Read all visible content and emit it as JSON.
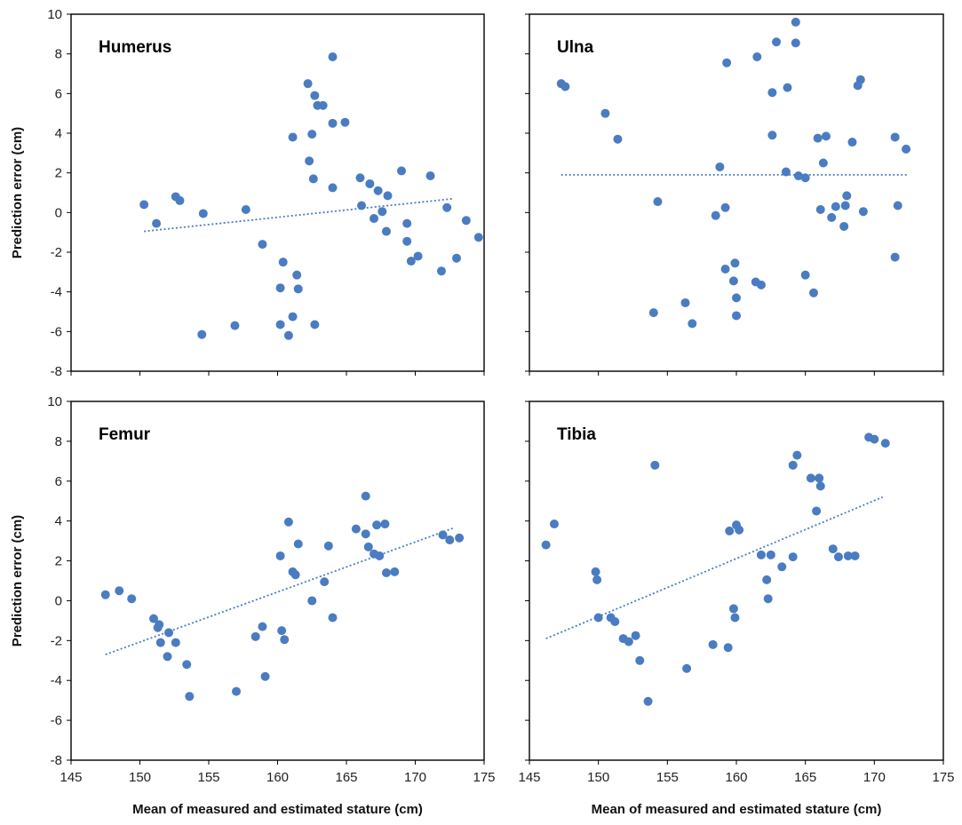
{
  "colors": {
    "point": "#4a7cc1",
    "trend": "#4a7cc1",
    "axis": "#000000"
  },
  "axes": {
    "ylabel": "Prediction error (cm)",
    "xlabel": "Mean of measured and estimated stature (cm)",
    "xlim": [
      145,
      175
    ],
    "ylim": [
      -8,
      10
    ],
    "xticks": [
      "145",
      "150",
      "155",
      "160",
      "165",
      "170",
      "175"
    ],
    "yticks": [
      "-8",
      "-6",
      "-4",
      "-2",
      "0",
      "2",
      "4",
      "6",
      "8",
      "10"
    ]
  },
  "chart_data": [
    {
      "type": "scatter",
      "title": "Humerus",
      "xlim": [
        145,
        175
      ],
      "ylim": [
        -8,
        10
      ],
      "trend": [
        [
          150.3,
          -0.95
        ],
        [
          172.8,
          0.7
        ]
      ],
      "points": [
        [
          150.3,
          0.4
        ],
        [
          151.2,
          -0.55
        ],
        [
          152.6,
          0.8
        ],
        [
          152.9,
          0.6
        ],
        [
          154.6,
          -0.05
        ],
        [
          154.5,
          -6.15
        ],
        [
          156.9,
          -5.7
        ],
        [
          157.7,
          0.15
        ],
        [
          158.9,
          -1.6
        ],
        [
          160.2,
          -3.8
        ],
        [
          160.4,
          -2.5
        ],
        [
          160.2,
          -5.65
        ],
        [
          160.8,
          -6.2
        ],
        [
          161.1,
          3.8
        ],
        [
          161.1,
          -5.25
        ],
        [
          161.4,
          -3.15
        ],
        [
          161.5,
          -3.85
        ],
        [
          162.2,
          6.5
        ],
        [
          162.3,
          2.6
        ],
        [
          162.5,
          3.95
        ],
        [
          162.7,
          5.9
        ],
        [
          162.6,
          1.7
        ],
        [
          162.9,
          5.4
        ],
        [
          163.3,
          5.4
        ],
        [
          162.7,
          -5.65
        ],
        [
          164.0,
          7.85
        ],
        [
          164.0,
          4.5
        ],
        [
          164.0,
          1.25
        ],
        [
          164.9,
          4.55
        ],
        [
          166.0,
          1.75
        ],
        [
          166.1,
          0.35
        ],
        [
          166.7,
          1.45
        ],
        [
          167.0,
          -0.3
        ],
        [
          167.3,
          1.1
        ],
        [
          167.6,
          0.05
        ],
        [
          167.9,
          -0.95
        ],
        [
          168.0,
          0.85
        ],
        [
          169.0,
          2.1
        ],
        [
          169.4,
          -0.55
        ],
        [
          169.4,
          -1.45
        ],
        [
          169.7,
          -2.45
        ],
        [
          170.2,
          -2.2
        ],
        [
          171.1,
          1.85
        ],
        [
          171.9,
          -2.95
        ],
        [
          172.3,
          0.25
        ],
        [
          173.0,
          -2.3
        ],
        [
          173.7,
          -0.4
        ],
        [
          174.6,
          -1.25
        ]
      ]
    },
    {
      "type": "scatter",
      "title": "Ulna",
      "xlim": [
        145,
        175
      ],
      "ylim": [
        -8,
        10
      ],
      "trend": [
        [
          147.3,
          1.9
        ],
        [
          172.4,
          1.9
        ]
      ],
      "points": [
        [
          147.3,
          6.5
        ],
        [
          147.6,
          6.35
        ],
        [
          150.5,
          5.0
        ],
        [
          151.4,
          3.7
        ],
        [
          154.0,
          -5.05
        ],
        [
          154.3,
          0.55
        ],
        [
          156.3,
          -4.55
        ],
        [
          156.8,
          -5.6
        ],
        [
          158.5,
          -0.15
        ],
        [
          158.8,
          2.3
        ],
        [
          159.2,
          0.25
        ],
        [
          159.2,
          -2.85
        ],
        [
          159.3,
          7.55
        ],
        [
          159.8,
          -3.45
        ],
        [
          159.9,
          -2.55
        ],
        [
          160.0,
          -4.3
        ],
        [
          160.0,
          -5.2
        ],
        [
          161.4,
          -3.5
        ],
        [
          161.5,
          7.85
        ],
        [
          161.8,
          -3.65
        ],
        [
          162.6,
          3.9
        ],
        [
          162.6,
          6.05
        ],
        [
          162.9,
          8.6
        ],
        [
          163.6,
          2.05
        ],
        [
          163.7,
          6.3
        ],
        [
          164.3,
          9.6
        ],
        [
          164.3,
          8.55
        ],
        [
          164.5,
          1.85
        ],
        [
          165.0,
          1.75
        ],
        [
          165.0,
          -3.15
        ],
        [
          165.6,
          -4.05
        ],
        [
          165.9,
          3.75
        ],
        [
          166.1,
          0.15
        ],
        [
          166.3,
          2.5
        ],
        [
          166.5,
          3.85
        ],
        [
          166.9,
          -0.25
        ],
        [
          167.2,
          0.3
        ],
        [
          167.8,
          -0.7
        ],
        [
          167.9,
          0.35
        ],
        [
          168.0,
          0.85
        ],
        [
          168.4,
          3.55
        ],
        [
          168.8,
          6.4
        ],
        [
          169.0,
          6.7
        ],
        [
          169.2,
          0.05
        ],
        [
          171.5,
          3.8
        ],
        [
          171.5,
          -2.25
        ],
        [
          171.7,
          0.35
        ],
        [
          172.3,
          3.2
        ]
      ]
    },
    {
      "type": "scatter",
      "title": "Femur",
      "xlim": [
        145,
        175
      ],
      "ylim": [
        -8,
        10
      ],
      "trend": [
        [
          147.5,
          -2.7
        ],
        [
          172.8,
          3.65
        ]
      ],
      "points": [
        [
          147.5,
          0.3
        ],
        [
          148.5,
          0.5
        ],
        [
          149.4,
          0.1
        ],
        [
          151.0,
          -0.9
        ],
        [
          151.3,
          -1.35
        ],
        [
          151.4,
          -1.2
        ],
        [
          151.5,
          -2.1
        ],
        [
          152.0,
          -2.8
        ],
        [
          152.1,
          -1.6
        ],
        [
          152.6,
          -2.1
        ],
        [
          153.4,
          -3.2
        ],
        [
          153.6,
          -4.8
        ],
        [
          157.0,
          -4.55
        ],
        [
          158.4,
          -1.8
        ],
        [
          158.9,
          -1.3
        ],
        [
          159.1,
          -3.8
        ],
        [
          160.2,
          2.25
        ],
        [
          160.3,
          -1.5
        ],
        [
          160.5,
          -1.95
        ],
        [
          160.8,
          3.95
        ],
        [
          161.1,
          1.45
        ],
        [
          161.3,
          1.3
        ],
        [
          161.5,
          2.85
        ],
        [
          162.5,
          0.0
        ],
        [
          163.4,
          0.95
        ],
        [
          163.7,
          2.75
        ],
        [
          164.0,
          -0.85
        ],
        [
          165.7,
          3.6
        ],
        [
          166.4,
          5.25
        ],
        [
          166.4,
          3.35
        ],
        [
          166.6,
          2.7
        ],
        [
          167.0,
          2.35
        ],
        [
          167.2,
          3.8
        ],
        [
          167.4,
          2.25
        ],
        [
          167.8,
          3.85
        ],
        [
          167.9,
          1.4
        ],
        [
          168.5,
          1.45
        ],
        [
          172.0,
          3.3
        ],
        [
          172.5,
          3.05
        ],
        [
          173.2,
          3.15
        ]
      ]
    },
    {
      "type": "scatter",
      "title": "Tibia",
      "xlim": [
        145,
        175
      ],
      "ylim": [
        -8,
        10
      ],
      "trend": [
        [
          146.2,
          -1.9
        ],
        [
          170.6,
          5.2
        ]
      ],
      "points": [
        [
          146.2,
          2.8
        ],
        [
          146.8,
          3.85
        ],
        [
          149.8,
          1.45
        ],
        [
          149.9,
          1.05
        ],
        [
          150.0,
          -0.85
        ],
        [
          150.9,
          -0.85
        ],
        [
          151.2,
          -1.05
        ],
        [
          151.8,
          -1.9
        ],
        [
          152.2,
          -2.05
        ],
        [
          152.7,
          -1.75
        ],
        [
          153.0,
          -3.0
        ],
        [
          153.6,
          -5.05
        ],
        [
          154.1,
          6.8
        ],
        [
          156.4,
          -3.4
        ],
        [
          158.3,
          -2.2
        ],
        [
          159.4,
          -2.35
        ],
        [
          159.5,
          3.5
        ],
        [
          159.8,
          -0.4
        ],
        [
          159.9,
          -0.85
        ],
        [
          160.0,
          3.8
        ],
        [
          160.2,
          3.55
        ],
        [
          161.8,
          2.3
        ],
        [
          162.2,
          1.05
        ],
        [
          162.3,
          0.1
        ],
        [
          162.5,
          2.3
        ],
        [
          163.3,
          1.7
        ],
        [
          164.1,
          2.2
        ],
        [
          164.1,
          6.8
        ],
        [
          164.4,
          7.3
        ],
        [
          165.4,
          6.15
        ],
        [
          165.8,
          4.5
        ],
        [
          166.0,
          6.15
        ],
        [
          166.1,
          5.75
        ],
        [
          167.0,
          2.6
        ],
        [
          167.4,
          2.2
        ],
        [
          168.1,
          2.25
        ],
        [
          168.6,
          2.25
        ],
        [
          169.6,
          8.2
        ],
        [
          170.0,
          8.1
        ],
        [
          170.8,
          7.9
        ]
      ]
    }
  ]
}
